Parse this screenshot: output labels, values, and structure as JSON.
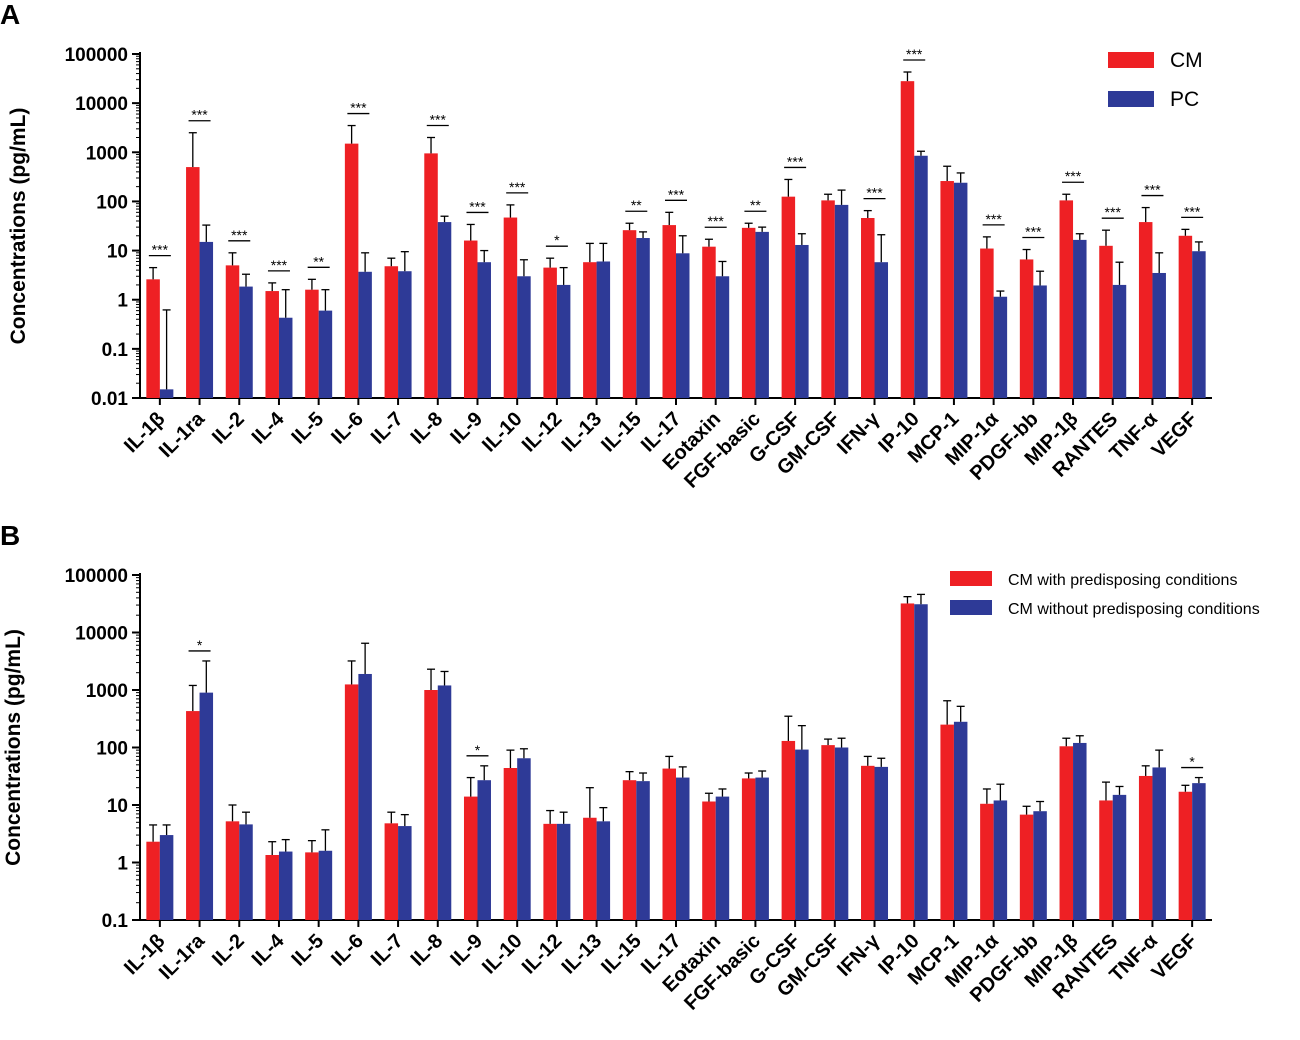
{
  "colors": {
    "series1": "#ee2024",
    "series2": "#2e3a97",
    "axis": "#000000"
  },
  "chart_data": [
    {
      "panel": "A",
      "type": "bar",
      "yscale": "log",
      "ylim": [
        0.01,
        100000
      ],
      "yticks": [
        "0.01",
        "0.1",
        "1",
        "10",
        "100",
        "1000",
        "10000",
        "100000"
      ],
      "ylabel": "Concentrations (pg/mL)",
      "xlabel": "",
      "categories": [
        "IL-1β",
        "IL-1ra",
        "IL-2",
        "IL-4",
        "IL-5",
        "IL-6",
        "IL-7",
        "IL-8",
        "IL-9",
        "IL-10",
        "IL-12",
        "IL-13",
        "IL-15",
        "IL-17",
        "Eotaxin",
        "FGF-basic",
        "G-CSF",
        "GM-CSF",
        "IFN-γ",
        "IP-10",
        "MCP-1",
        "MIP-1α",
        "PDGF-bb",
        "MIP-1β",
        "RANTES",
        "TNF-α",
        "VEGF"
      ],
      "series": [
        {
          "name": "CM",
          "values": [
            2.6,
            500,
            5,
            1.5,
            1.6,
            1500,
            4.8,
            950,
            16,
            47,
            4.5,
            5.8,
            26,
            33,
            12,
            29,
            125,
            105,
            46,
            28000,
            260,
            11,
            6.6,
            105,
            12.5,
            38,
            20
          ],
          "errors": [
            4.5,
            2500,
            9,
            2.2,
            2.6,
            3500,
            7,
            2000,
            34,
            85,
            7,
            14,
            36,
            60,
            17,
            36,
            280,
            140,
            65,
            43000,
            520,
            19,
            10.5,
            140,
            26,
            75,
            27
          ]
        },
        {
          "name": "PC",
          "values": [
            0.015,
            15,
            1.85,
            0.43,
            0.6,
            3.7,
            3.8,
            38,
            5.8,
            3,
            2,
            6,
            18,
            8.8,
            3,
            24,
            13,
            85,
            5.8,
            850,
            240,
            1.15,
            1.95,
            16.5,
            2,
            3.5,
            9.7
          ],
          "errors": [
            0.62,
            33,
            3.3,
            1.6,
            1.6,
            9,
            9.5,
            50,
            10,
            6.5,
            4.5,
            14,
            24,
            20,
            6,
            30,
            22,
            170,
            21,
            1050,
            380,
            1.5,
            3.8,
            22,
            5.8,
            9,
            15
          ]
        }
      ],
      "significance": [
        {
          "category": "IL-1β",
          "label": "***"
        },
        {
          "category": "IL-1ra",
          "label": "***"
        },
        {
          "category": "IL-2",
          "label": "***"
        },
        {
          "category": "IL-4",
          "label": "***"
        },
        {
          "category": "IL-5",
          "label": "**"
        },
        {
          "category": "IL-6",
          "label": "***"
        },
        {
          "category": "IL-8",
          "label": "***"
        },
        {
          "category": "IL-9",
          "label": "***"
        },
        {
          "category": "IL-10",
          "label": "***"
        },
        {
          "category": "IL-12",
          "label": "*"
        },
        {
          "category": "IL-15",
          "label": "**"
        },
        {
          "category": "IL-17",
          "label": "***"
        },
        {
          "category": "Eotaxin",
          "label": "***"
        },
        {
          "category": "FGF-basic",
          "label": "**"
        },
        {
          "category": "G-CSF",
          "label": "***"
        },
        {
          "category": "IFN-γ",
          "label": "***"
        },
        {
          "category": "IP-10",
          "label": "***"
        },
        {
          "category": "MIP-1α",
          "label": "***"
        },
        {
          "category": "PDGF-bb",
          "label": "***"
        },
        {
          "category": "MIP-1β",
          "label": "***"
        },
        {
          "category": "RANTES",
          "label": "***"
        },
        {
          "category": "TNF-α",
          "label": "***"
        },
        {
          "category": "VEGF",
          "label": "***"
        }
      ],
      "legend": [
        "CM",
        "PC"
      ],
      "legend_position": "top-right"
    },
    {
      "panel": "B",
      "type": "bar",
      "yscale": "log",
      "ylim": [
        0.1,
        100000
      ],
      "yticks": [
        "0.1",
        "1",
        "10",
        "100",
        "1000",
        "10000",
        "100000"
      ],
      "ylabel": "Concentrations (pg/mL)",
      "xlabel": "",
      "categories": [
        "IL-1β",
        "IL-1ra",
        "IL-2",
        "IL-4",
        "IL-5",
        "IL-6",
        "IL-7",
        "IL-8",
        "IL-9",
        "IL-10",
        "IL-12",
        "IL-13",
        "IL-15",
        "IL-17",
        "Eotaxin",
        "FGF-basic",
        "G-CSF",
        "GM-CSF",
        "IFN-γ",
        "IP-10",
        "MCP-1",
        "MIP-1α",
        "PDGF-bb",
        "MIP-1β",
        "RANTES",
        "TNF-α",
        "VEGF"
      ],
      "series": [
        {
          "name": "CM with predisposing conditions",
          "values": [
            2.3,
            430,
            5.2,
            1.35,
            1.5,
            1250,
            4.8,
            1000,
            14,
            44,
            4.7,
            6,
            27,
            43,
            11.5,
            29,
            130,
            110,
            48,
            32000,
            250,
            10.5,
            6.8,
            105,
            12,
            32,
            17
          ],
          "errors": [
            4.5,
            1200,
            10,
            2.3,
            2.4,
            3200,
            7.5,
            2300,
            30,
            90,
            8,
            20,
            38,
            70,
            16,
            36,
            350,
            140,
            70,
            42000,
            650,
            19,
            9.5,
            145,
            25,
            48,
            22
          ]
        },
        {
          "name": "CM without predisposing conditions",
          "values": [
            3,
            900,
            4.6,
            1.55,
            1.6,
            1900,
            4.3,
            1200,
            27,
            65,
            4.7,
            5.2,
            26,
            30,
            14,
            30,
            92,
            100,
            46,
            31000,
            280,
            12,
            7.8,
            120,
            15,
            45,
            24
          ],
          "errors": [
            4.5,
            3200,
            7.5,
            2.5,
            3.7,
            6500,
            6.8,
            2100,
            48,
            95,
            7.5,
            9,
            36,
            46,
            19,
            39,
            240,
            145,
            65,
            46000,
            520,
            23,
            11.5,
            160,
            21,
            90,
            30
          ]
        }
      ],
      "significance": [
        {
          "category": "IL-1ra",
          "label": "*"
        },
        {
          "category": "IL-9",
          "label": "*"
        },
        {
          "category": "VEGF",
          "label": "*"
        }
      ],
      "legend": [
        "CM with predisposing conditions",
        "CM without predisposing conditions"
      ],
      "legend_position": "top-right"
    }
  ]
}
